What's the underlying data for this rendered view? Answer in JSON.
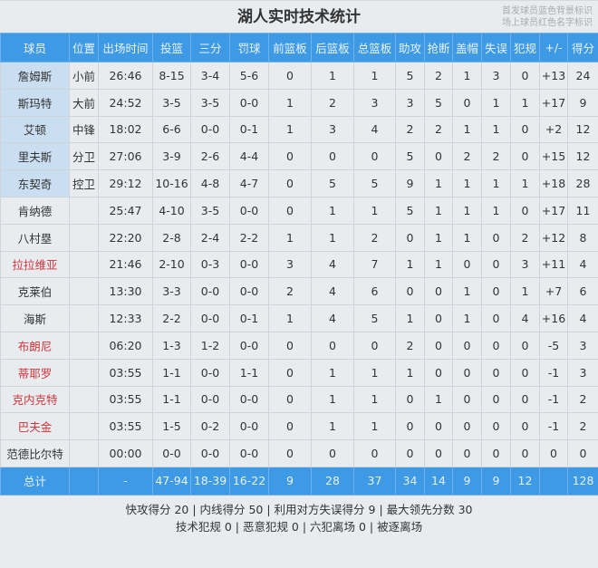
{
  "header": {
    "title": "湖人实时技术统计",
    "legend_line1": "首发球员蓝色背景标识",
    "legend_line2": "场上球员红色名字标识"
  },
  "colors": {
    "header_bg": "#3e9ae4",
    "starter_bg": "#c9def0",
    "on_court_name": "#d0343c"
  },
  "columns": [
    "球员",
    "位置",
    "出场时间",
    "投篮",
    "三分",
    "罚球",
    "前篮板",
    "后篮板",
    "总篮板",
    "助攻",
    "抢断",
    "盖帽",
    "失误",
    "犯规",
    "+/-",
    "得分"
  ],
  "players": [
    {
      "name": "詹姆斯",
      "starter": true,
      "on_court": false,
      "stats": [
        "小前",
        "26:46",
        "8-15",
        "3-4",
        "5-6",
        "0",
        "1",
        "1",
        "5",
        "2",
        "1",
        "3",
        "0",
        "+13",
        "24"
      ]
    },
    {
      "name": "斯玛特",
      "starter": true,
      "on_court": false,
      "stats": [
        "大前",
        "24:52",
        "3-5",
        "3-5",
        "0-0",
        "1",
        "2",
        "3",
        "3",
        "5",
        "0",
        "1",
        "1",
        "+17",
        "9"
      ]
    },
    {
      "name": "艾顿",
      "starter": true,
      "on_court": false,
      "stats": [
        "中锋",
        "18:02",
        "6-6",
        "0-0",
        "0-1",
        "1",
        "3",
        "4",
        "2",
        "2",
        "1",
        "1",
        "0",
        "+2",
        "12"
      ]
    },
    {
      "name": "里夫斯",
      "starter": true,
      "on_court": false,
      "stats": [
        "分卫",
        "27:06",
        "3-9",
        "2-6",
        "4-4",
        "0",
        "0",
        "0",
        "5",
        "0",
        "2",
        "2",
        "0",
        "+15",
        "12"
      ]
    },
    {
      "name": "东契奇",
      "starter": true,
      "on_court": false,
      "stats": [
        "控卫",
        "29:12",
        "10-16",
        "4-8",
        "4-7",
        "0",
        "5",
        "5",
        "9",
        "1",
        "1",
        "1",
        "1",
        "+18",
        "28"
      ]
    },
    {
      "name": "肯纳德",
      "starter": false,
      "on_court": false,
      "stats": [
        "",
        "25:47",
        "4-10",
        "3-5",
        "0-0",
        "0",
        "1",
        "1",
        "5",
        "1",
        "1",
        "1",
        "0",
        "+17",
        "11"
      ]
    },
    {
      "name": "八村塁",
      "starter": false,
      "on_court": false,
      "stats": [
        "",
        "22:20",
        "2-8",
        "2-4",
        "2-2",
        "1",
        "1",
        "2",
        "0",
        "1",
        "1",
        "0",
        "2",
        "+12",
        "8"
      ]
    },
    {
      "name": "拉拉维亚",
      "starter": false,
      "on_court": true,
      "stats": [
        "",
        "21:46",
        "2-10",
        "0-3",
        "0-0",
        "3",
        "4",
        "7",
        "1",
        "1",
        "0",
        "0",
        "3",
        "+11",
        "4"
      ]
    },
    {
      "name": "克莱伯",
      "starter": false,
      "on_court": false,
      "stats": [
        "",
        "13:30",
        "3-3",
        "0-0",
        "0-0",
        "2",
        "4",
        "6",
        "0",
        "0",
        "1",
        "0",
        "1",
        "+7",
        "6"
      ]
    },
    {
      "name": "海斯",
      "starter": false,
      "on_court": false,
      "stats": [
        "",
        "12:33",
        "2-2",
        "0-0",
        "0-1",
        "1",
        "4",
        "5",
        "1",
        "0",
        "1",
        "0",
        "4",
        "+16",
        "4"
      ]
    },
    {
      "name": "布朗尼",
      "starter": false,
      "on_court": true,
      "stats": [
        "",
        "06:20",
        "1-3",
        "1-2",
        "0-0",
        "0",
        "0",
        "0",
        "2",
        "0",
        "0",
        "0",
        "0",
        "-5",
        "3"
      ]
    },
    {
      "name": "蒂耶罗",
      "starter": false,
      "on_court": true,
      "stats": [
        "",
        "03:55",
        "1-1",
        "0-0",
        "1-1",
        "0",
        "1",
        "1",
        "1",
        "0",
        "0",
        "0",
        "0",
        "-1",
        "3"
      ]
    },
    {
      "name": "克内克特",
      "starter": false,
      "on_court": true,
      "stats": [
        "",
        "03:55",
        "1-1",
        "0-0",
        "0-0",
        "0",
        "1",
        "1",
        "0",
        "1",
        "0",
        "0",
        "0",
        "-1",
        "2"
      ]
    },
    {
      "name": "巴夫金",
      "starter": false,
      "on_court": true,
      "stats": [
        "",
        "03:55",
        "1-5",
        "0-2",
        "0-0",
        "0",
        "1",
        "1",
        "0",
        "0",
        "0",
        "0",
        "0",
        "-1",
        "2"
      ]
    },
    {
      "name": "范德比尔特",
      "starter": false,
      "on_court": false,
      "stats": [
        "",
        "00:00",
        "0-0",
        "0-0",
        "0-0",
        "0",
        "0",
        "0",
        "0",
        "0",
        "0",
        "0",
        "0",
        "0",
        "0"
      ]
    }
  ],
  "totals": {
    "label": "总计",
    "stats": [
      "",
      "-",
      "47-94",
      "18-39",
      "16-22",
      "9",
      "28",
      "37",
      "34",
      "14",
      "9",
      "9",
      "12",
      "",
      "128"
    ]
  },
  "footer": {
    "line1": "快攻得分 20 | 内线得分 50 | 利用对方失误得分 9 | 最大领先分数 30",
    "line2": "技术犯规 0 | 恶意犯规 0 | 六犯离场 0 | 被逐离场"
  }
}
